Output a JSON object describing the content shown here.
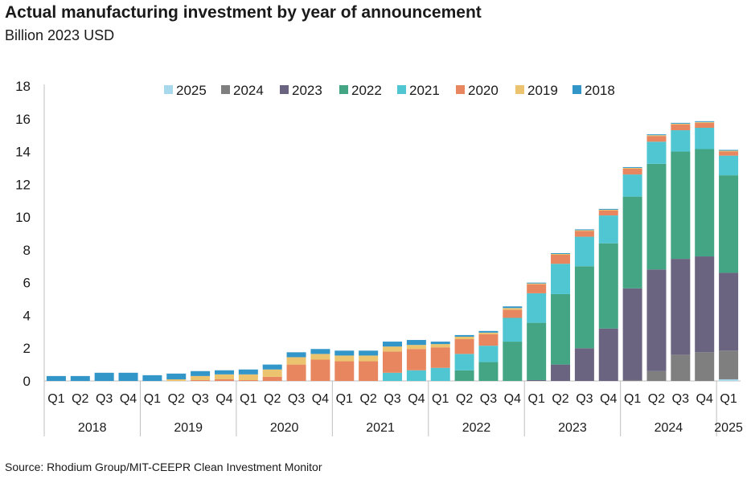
{
  "chart_title": "Actual manufacturing investment by year of announcement",
  "chart_subtitle": "Billion 2023 USD",
  "source": "Source: Rhodium Group/MIT-CEEPR Clean Investment Monitor",
  "chart_data": {
    "type": "bar",
    "stacked": true,
    "title": "Actual manufacturing investment by year of announcement",
    "subtitle": "Billion 2023 USD",
    "ylim": [
      0,
      18
    ],
    "yticks": [
      0,
      2,
      4,
      6,
      8,
      10,
      12,
      14,
      16,
      18
    ],
    "grid": false,
    "legend_position": "top",
    "categories": [
      "Q1",
      "Q2",
      "Q3",
      "Q4",
      "Q1",
      "Q2",
      "Q3",
      "Q4",
      "Q1",
      "Q2",
      "Q3",
      "Q4",
      "Q1",
      "Q2",
      "Q3",
      "Q4",
      "Q1",
      "Q2",
      "Q3",
      "Q4",
      "Q1",
      "Q2",
      "Q3",
      "Q4",
      "Q1",
      "Q2",
      "Q3",
      "Q4",
      "Q1"
    ],
    "year_groups": [
      {
        "label": "2018",
        "count": 4
      },
      {
        "label": "2019",
        "count": 4
      },
      {
        "label": "2020",
        "count": 4
      },
      {
        "label": "2021",
        "count": 4
      },
      {
        "label": "2022",
        "count": 4
      },
      {
        "label": "2023",
        "count": 4
      },
      {
        "label": "2024",
        "count": 4
      },
      {
        "label": "2025",
        "count": 1
      }
    ],
    "stack_order": [
      "2025",
      "2024",
      "2023",
      "2022",
      "2021",
      "2020",
      "2019",
      "2018"
    ],
    "legend_order": [
      "2025",
      "2024",
      "2023",
      "2022",
      "2021",
      "2020",
      "2019",
      "2018"
    ],
    "series": [
      {
        "name": "2025",
        "color": "#a7d8ec",
        "values": [
          0,
          0,
          0,
          0,
          0,
          0,
          0,
          0,
          0,
          0,
          0,
          0,
          0,
          0,
          0,
          0,
          0,
          0,
          0,
          0,
          0,
          0,
          0,
          0,
          0,
          0,
          0,
          0,
          0.1
        ]
      },
      {
        "name": "2024",
        "color": "#7f7f7f",
        "values": [
          0,
          0,
          0,
          0,
          0,
          0,
          0,
          0,
          0,
          0,
          0,
          0,
          0,
          0,
          0,
          0,
          0,
          0,
          0,
          0,
          0,
          0,
          0,
          0,
          0.05,
          0.6,
          1.6,
          1.75,
          1.75
        ]
      },
      {
        "name": "2023",
        "color": "#6b6481",
        "values": [
          0,
          0,
          0,
          0,
          0,
          0,
          0,
          0,
          0,
          0,
          0,
          0,
          0,
          0,
          0,
          0,
          0,
          0,
          0,
          0,
          0.05,
          1.0,
          2.0,
          3.2,
          5.6,
          6.2,
          5.85,
          5.85,
          4.75
        ]
      },
      {
        "name": "2022",
        "color": "#43a584",
        "values": [
          0,
          0,
          0,
          0,
          0,
          0,
          0,
          0,
          0,
          0,
          0,
          0,
          0,
          0,
          0,
          0,
          0,
          0.65,
          1.15,
          2.4,
          3.5,
          4.3,
          5.0,
          5.2,
          5.6,
          6.45,
          6.55,
          6.55,
          5.95
        ]
      },
      {
        "name": "2021",
        "color": "#4fc6d2",
        "values": [
          0,
          0,
          0,
          0,
          0,
          0,
          0,
          0,
          0,
          0,
          0,
          0,
          0,
          0,
          0.5,
          0.65,
          0.8,
          1.0,
          1.0,
          1.45,
          1.8,
          1.85,
          1.8,
          1.7,
          1.35,
          1.35,
          1.3,
          1.3,
          1.2
        ]
      },
      {
        "name": "2020",
        "color": "#e8875f",
        "values": [
          0,
          0,
          0,
          0,
          0,
          0,
          0.05,
          0.1,
          0.05,
          0.25,
          1.0,
          1.3,
          1.2,
          1.2,
          1.3,
          1.3,
          1.25,
          0.9,
          0.7,
          0.5,
          0.55,
          0.55,
          0.35,
          0.3,
          0.35,
          0.35,
          0.35,
          0.3,
          0.25
        ]
      },
      {
        "name": "2019",
        "color": "#ecc36e",
        "values": [
          0,
          0,
          0,
          0,
          0,
          0.1,
          0.25,
          0.3,
          0.35,
          0.45,
          0.45,
          0.35,
          0.35,
          0.35,
          0.3,
          0.25,
          0.2,
          0.15,
          0.1,
          0.1,
          0.05,
          0.05,
          0.05,
          0.05,
          0.05,
          0.05,
          0.05,
          0.05,
          0.05
        ]
      },
      {
        "name": "2018",
        "color": "#3396c8",
        "values": [
          0.3,
          0.3,
          0.5,
          0.5,
          0.35,
          0.35,
          0.3,
          0.25,
          0.3,
          0.3,
          0.3,
          0.3,
          0.3,
          0.3,
          0.3,
          0.3,
          0.15,
          0.1,
          0.1,
          0.1,
          0.05,
          0.05,
          0.05,
          0.05,
          0.05,
          0.05,
          0.05,
          0.05,
          0.05
        ]
      }
    ]
  }
}
